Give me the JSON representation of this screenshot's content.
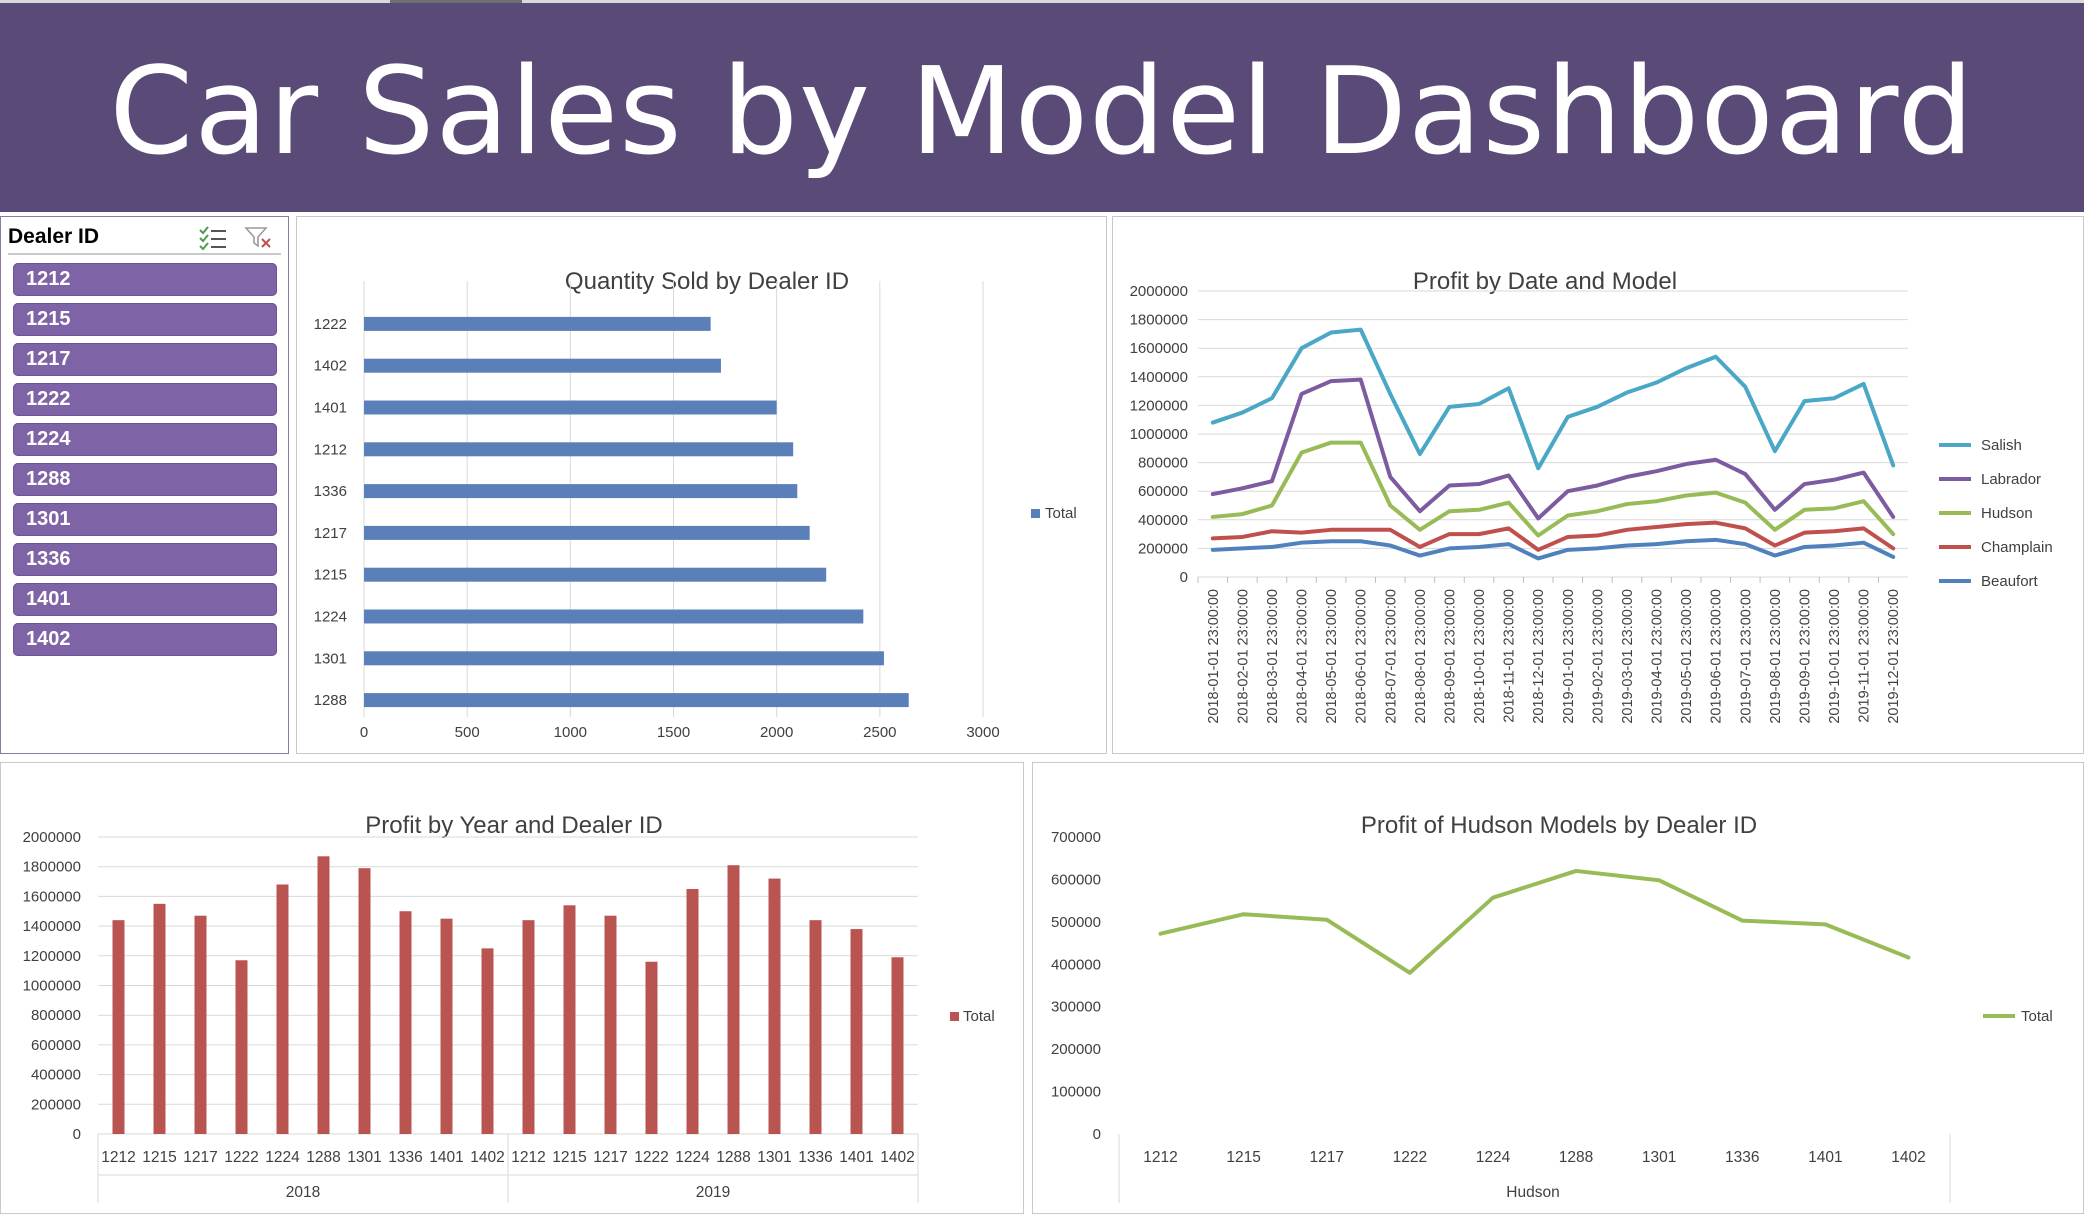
{
  "dashboard": {
    "title": "Car Sales by Model Dashboard"
  },
  "slicer": {
    "title": "Dealer ID",
    "multiselect_icon": "multi-select-icon",
    "clear_filter_icon": "clear-filter-icon",
    "items": [
      "1212",
      "1215",
      "1217",
      "1222",
      "1224",
      "1288",
      "1301",
      "1336",
      "1401",
      "1402"
    ]
  },
  "colors": {
    "banner": "#5a4a77",
    "slicer_item": "#7e64a6",
    "bar_blue": "#5b80b9",
    "bar_red": "#b95450",
    "salish": "#4aa7c5",
    "labrador": "#7d5ba0",
    "hudson": "#98bb57",
    "champlain": "#c0504d",
    "beaufort": "#4f81bd"
  },
  "chart_data": [
    {
      "id": "qty",
      "type": "bar",
      "orientation": "horizontal",
      "title": "Quantity Sold by Dealer ID",
      "categories": [
        "1222",
        "1402",
        "1401",
        "1212",
        "1336",
        "1217",
        "1215",
        "1224",
        "1301",
        "1288"
      ],
      "series": [
        {
          "name": "Total",
          "values": [
            1680,
            1730,
            2000,
            2080,
            2100,
            2160,
            2240,
            2420,
            2520,
            2640
          ]
        }
      ],
      "xlim": [
        0,
        3000
      ],
      "xticks": [
        "0",
        "500",
        "1000",
        "1500",
        "2000",
        "2500",
        "3000"
      ],
      "grid": true,
      "legend": "right"
    },
    {
      "id": "profit_date",
      "type": "line",
      "title": "Profit by Date and Model",
      "x": [
        "2018-01-01 23:00:00",
        "2018-02-01 23:00:00",
        "2018-03-01 23:00:00",
        "2018-04-01 23:00:00",
        "2018-05-01 23:00:00",
        "2018-06-01 23:00:00",
        "2018-07-01 23:00:00",
        "2018-08-01 23:00:00",
        "2018-09-01 23:00:00",
        "2018-10-01 23:00:00",
        "2018-11-01 23:00:00",
        "2018-12-01 23:00:00",
        "2019-01-01 23:00:00",
        "2019-02-01 23:00:00",
        "2019-03-01 23:00:00",
        "2019-04-01 23:00:00",
        "2019-05-01 23:00:00",
        "2019-06-01 23:00:00",
        "2019-07-01 23:00:00",
        "2019-08-01 23:00:00",
        "2019-09-01 23:00:00",
        "2019-10-01 23:00:00",
        "2019-11-01 23:00:00",
        "2019-12-01 23:00:00"
      ],
      "series": [
        {
          "name": "Salish",
          "color": "#4aa7c5",
          "values": [
            1080000,
            1150000,
            1250000,
            1600000,
            1710000,
            1730000,
            1280000,
            860000,
            1190000,
            1210000,
            1320000,
            760000,
            1120000,
            1190000,
            1290000,
            1360000,
            1460000,
            1540000,
            1330000,
            880000,
            1230000,
            1250000,
            1350000,
            780000
          ]
        },
        {
          "name": "Labrador",
          "color": "#7d5ba0",
          "values": [
            580000,
            620000,
            670000,
            1280000,
            1370000,
            1380000,
            700000,
            460000,
            640000,
            650000,
            710000,
            410000,
            600000,
            640000,
            700000,
            740000,
            790000,
            820000,
            720000,
            470000,
            650000,
            680000,
            730000,
            420000
          ]
        },
        {
          "name": "Hudson",
          "color": "#98bb57",
          "values": [
            420000,
            440000,
            500000,
            870000,
            940000,
            940000,
            500000,
            330000,
            460000,
            470000,
            520000,
            290000,
            430000,
            460000,
            510000,
            530000,
            570000,
            590000,
            520000,
            330000,
            470000,
            480000,
            530000,
            300000
          ]
        },
        {
          "name": "Champlain",
          "color": "#c0504d",
          "values": [
            270000,
            280000,
            320000,
            310000,
            330000,
            330000,
            330000,
            210000,
            300000,
            300000,
            340000,
            190000,
            280000,
            290000,
            330000,
            350000,
            370000,
            380000,
            340000,
            220000,
            310000,
            320000,
            340000,
            200000
          ]
        },
        {
          "name": "Beaufort",
          "color": "#4f81bd",
          "values": [
            190000,
            200000,
            210000,
            240000,
            250000,
            250000,
            220000,
            150000,
            200000,
            210000,
            230000,
            130000,
            190000,
            200000,
            220000,
            230000,
            250000,
            260000,
            230000,
            150000,
            210000,
            220000,
            240000,
            140000
          ]
        }
      ],
      "ylim": [
        0,
        2000000
      ],
      "yticks": [
        "2000000",
        "1800000",
        "1600000",
        "1400000",
        "1200000",
        "1000000",
        "800000",
        "600000",
        "400000",
        "200000",
        "0"
      ],
      "grid": true,
      "legend": "right"
    },
    {
      "id": "profit_year",
      "type": "bar",
      "title": "Profit by Year and Dealer ID",
      "groups": [
        {
          "label": "2018",
          "categories": [
            "1212",
            "1215",
            "1217",
            "1222",
            "1224",
            "1288",
            "1301",
            "1336",
            "1401",
            "1402"
          ]
        },
        {
          "label": "2019",
          "categories": [
            "1212",
            "1215",
            "1217",
            "1222",
            "1224",
            "1288",
            "1301",
            "1336",
            "1401",
            "1402"
          ]
        }
      ],
      "series": [
        {
          "name": "Total",
          "values": [
            1440000,
            1550000,
            1470000,
            1170000,
            1680000,
            1870000,
            1790000,
            1500000,
            1450000,
            1250000,
            1440000,
            1540000,
            1470000,
            1160000,
            1650000,
            1810000,
            1720000,
            1440000,
            1380000,
            1190000
          ]
        }
      ],
      "ylim": [
        0,
        2000000
      ],
      "yticks": [
        "2000000",
        "1800000",
        "1600000",
        "1400000",
        "1200000",
        "1000000",
        "800000",
        "600000",
        "400000",
        "200000",
        "0"
      ],
      "grid": true,
      "legend": "right"
    },
    {
      "id": "hudson",
      "type": "line",
      "title": "Profit of Hudson Models by Dealer ID",
      "categories": [
        "1212",
        "1215",
        "1217",
        "1222",
        "1224",
        "1288",
        "1301",
        "1336",
        "1401",
        "1402"
      ],
      "group_label": "Hudson",
      "series": [
        {
          "name": "Total",
          "color": "#98bb57",
          "values": [
            472000,
            518000,
            505000,
            380000,
            557000,
            620000,
            598000,
            503000,
            494000,
            416000
          ]
        }
      ],
      "ylim": [
        0,
        700000
      ],
      "yticks": [
        "700000",
        "600000",
        "500000",
        "400000",
        "300000",
        "200000",
        "100000",
        "0"
      ],
      "grid": false,
      "legend": "right"
    }
  ]
}
